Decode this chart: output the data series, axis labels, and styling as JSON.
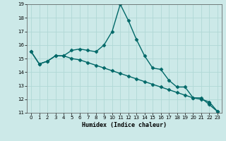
{
  "xlabel": "Humidex (Indice chaleur)",
  "bg_color": "#cce9e8",
  "grid_color": "#b0d8d6",
  "line_color": "#006868",
  "x_values": [
    0,
    1,
    2,
    3,
    4,
    5,
    6,
    7,
    8,
    9,
    10,
    11,
    12,
    13,
    14,
    15,
    16,
    17,
    18,
    19,
    20,
    21,
    22,
    23
  ],
  "y_series1": [
    15.5,
    14.6,
    14.8,
    15.2,
    15.2,
    15.6,
    15.7,
    15.6,
    15.5,
    16.0,
    17.0,
    19.0,
    17.8,
    16.4,
    15.2,
    14.3,
    14.2,
    13.4,
    12.9,
    12.9,
    12.1,
    12.1,
    11.6,
    11.1
  ],
  "y_series2": [
    15.5,
    14.6,
    14.8,
    15.2,
    15.2,
    15.0,
    14.9,
    14.7,
    14.5,
    14.3,
    14.1,
    13.9,
    13.7,
    13.5,
    13.3,
    13.1,
    12.9,
    12.7,
    12.5,
    12.3,
    12.1,
    12.0,
    11.8,
    11.1
  ],
  "ylim": [
    11,
    19
  ],
  "xlim": [
    -0.5,
    23.5
  ],
  "yticks": [
    11,
    12,
    13,
    14,
    15,
    16,
    17,
    18,
    19
  ],
  "xticks": [
    0,
    1,
    2,
    3,
    4,
    5,
    6,
    7,
    8,
    9,
    10,
    11,
    12,
    13,
    14,
    15,
    16,
    17,
    18,
    19,
    20,
    21,
    22,
    23
  ],
  "marker": "D",
  "marker_size": 2.5,
  "line_width": 1.0,
  "tick_fontsize": 5.0,
  "xlabel_fontsize": 6.0
}
